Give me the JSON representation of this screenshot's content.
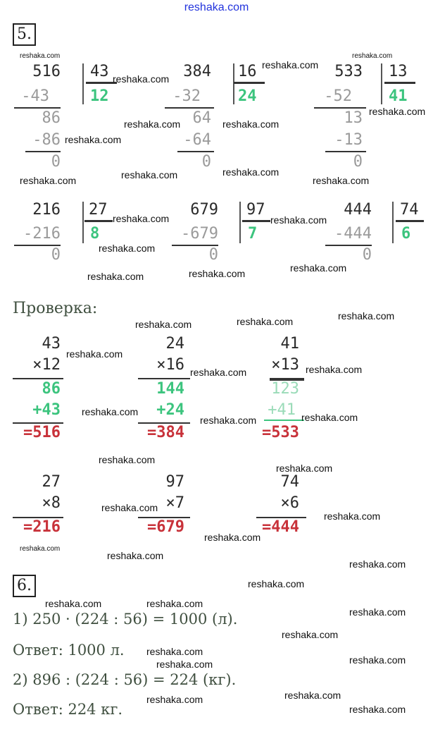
{
  "header": {
    "site": "reshaka.com"
  },
  "watermark": "reshaka.com",
  "task5": {
    "label": "5.",
    "divisions": [
      {
        "dividend": "516",
        "divisor": "43",
        "quotient": "12",
        "sub1": "-43",
        "rem": "86",
        "sub2": "-86",
        "zero": "0"
      },
      {
        "dividend": "384",
        "divisor": "16",
        "quotient": "24",
        "sub1": "-32",
        "rem": "64",
        "sub2": "-64",
        "zero": "0"
      },
      {
        "dividend": "533",
        "divisor": "13",
        "quotient": "41",
        "sub1": "-52",
        "rem": "13",
        "sub2": "-13",
        "zero": "0"
      },
      {
        "dividend": "216",
        "divisor": "27",
        "quotient": "8",
        "sub1": "-216",
        "zero": "0"
      },
      {
        "dividend": "679",
        "divisor": "97",
        "quotient": "7",
        "sub1": "-679",
        "zero": "0"
      },
      {
        "dividend": "444",
        "divisor": "74",
        "quotient": "6",
        "sub1": "-444",
        "zero": "0"
      }
    ],
    "check_label": "Проверка:",
    "multiplications": [
      {
        "a": "43",
        "b": "×12",
        "p1": "86",
        "p2": "+43",
        "result": "=516"
      },
      {
        "a": "24",
        "b": "×16",
        "p1": "144",
        "p2": "+24",
        "result": "=384"
      },
      {
        "a": "41",
        "b": "×13",
        "p1": "123",
        "p2": "+41",
        "result": "=533"
      },
      {
        "a": "27",
        "b": "×8",
        "result": "=216"
      },
      {
        "a": "97",
        "b": "×7",
        "result": "=679"
      },
      {
        "a": "74",
        "b": "×6",
        "result": "=444"
      }
    ]
  },
  "task6": {
    "label": "6.",
    "lines": [
      "1) 250 · (224 : 56) = 1000 (л).",
      "Ответ: 1000 л.",
      "2) 896 : (224 : 56) = 224 (кг).",
      "Ответ: 224 кг."
    ]
  }
}
